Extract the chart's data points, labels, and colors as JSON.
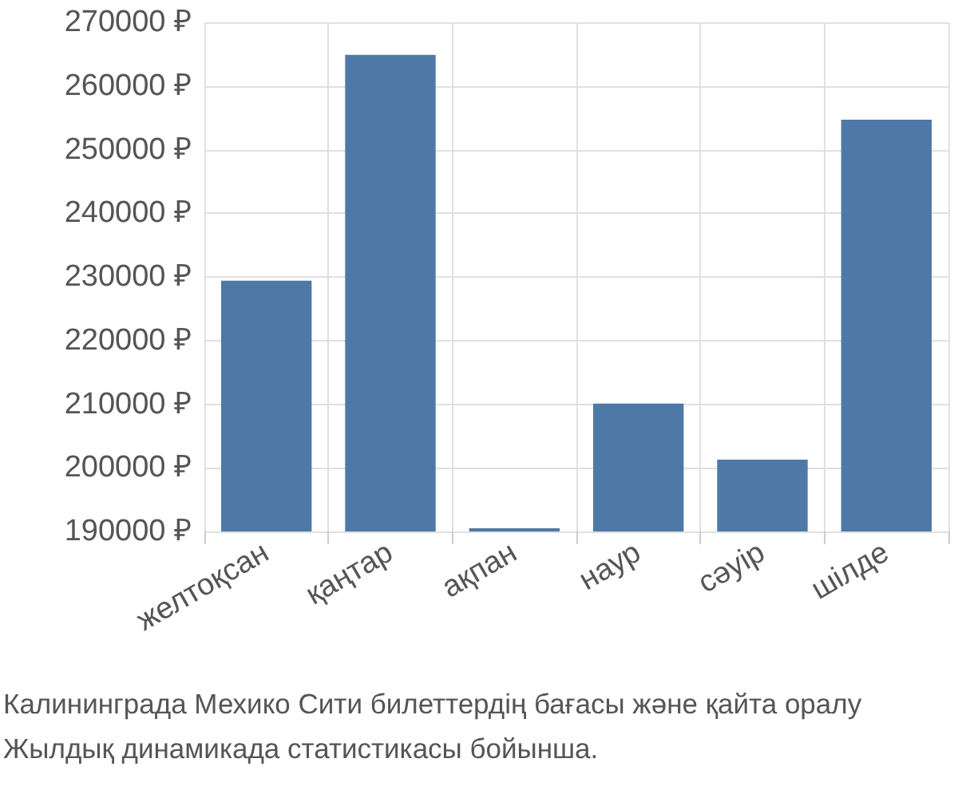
{
  "chart_data": {
    "type": "bar",
    "categories": [
      "желтоқсан",
      "қаңтар",
      "ақпан",
      "наур",
      "сәуір",
      "шілде"
    ],
    "values": [
      229400,
      264900,
      190500,
      210100,
      201300,
      254700
    ],
    "color": "#4e79a7",
    "ylim": [
      190000,
      270000
    ],
    "yticks": [
      {
        "value": 190000,
        "label": "190000 ₽"
      },
      {
        "value": 200000,
        "label": "200000 ₽"
      },
      {
        "value": 210000,
        "label": "210000 ₽"
      },
      {
        "value": 220000,
        "label": "220000 ₽"
      },
      {
        "value": 230000,
        "label": "230000 ₽"
      },
      {
        "value": 240000,
        "label": "240000 ₽"
      },
      {
        "value": 250000,
        "label": "250000 ₽"
      },
      {
        "value": 260000,
        "label": "260000 ₽"
      },
      {
        "value": 270000,
        "label": "270000 ₽"
      }
    ],
    "grid": true,
    "annotations": [
      "Калининграда Мехико Сити билеттердің бағасы және қайта оралу",
      "Жылдық динамикада статистикасы бойынша."
    ]
  }
}
